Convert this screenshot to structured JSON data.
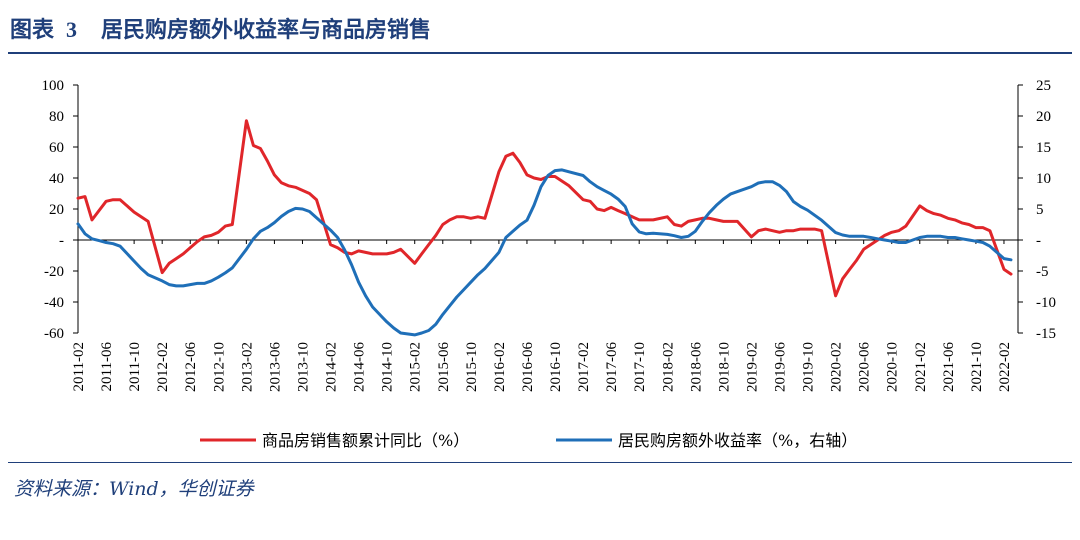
{
  "header": {
    "figure_label": "图表",
    "figure_number": "3",
    "title": "居民购房额外收益率与商品房销售"
  },
  "source": "资料来源：Wind，华创证券",
  "chart_data": {
    "type": "line",
    "xlabel": "",
    "ylabel": "",
    "y_left_lim": [
      -60,
      100
    ],
    "y_right_lim": [
      -15,
      25
    ],
    "y_left_ticks": [
      "100",
      "80",
      "60",
      "40",
      "20",
      "-",
      "-20",
      "-40",
      "-60"
    ],
    "y_right_ticks": [
      "25",
      "20",
      "15",
      "10",
      "5",
      "-",
      "-5",
      "-10",
      "-15"
    ],
    "x_tick_labels": [
      "2011-02",
      "2011-06",
      "2011-10",
      "2012-02",
      "2012-06",
      "2012-10",
      "2013-02",
      "2013-06",
      "2013-10",
      "2014-02",
      "2014-06",
      "2014-10",
      "2015-02",
      "2015-06",
      "2015-10",
      "2016-02",
      "2016-06",
      "2016-10",
      "2017-02",
      "2017-06",
      "2017-10",
      "2018-02",
      "2018-06",
      "2018-10",
      "2019-02",
      "2019-06",
      "2019-10",
      "2020-02",
      "2020-06",
      "2020-10",
      "2021-02",
      "2021-06",
      "2021-10",
      "2022-02"
    ],
    "grid": false,
    "legend_position": "bottom",
    "colors": {
      "sales": "#e0262a",
      "yield": "#1f6fb8"
    },
    "series": [
      {
        "name": "商品房销售额累计同比（%）",
        "axis": "left",
        "color": "#e0262a",
        "points": [
          [
            "2011-02",
            27
          ],
          [
            "2011-03",
            28
          ],
          [
            "2011-04",
            13
          ],
          [
            "2011-05",
            19
          ],
          [
            "2011-06",
            25
          ],
          [
            "2011-07",
            26
          ],
          [
            "2011-08",
            26
          ],
          [
            "2011-09",
            22
          ],
          [
            "2011-10",
            18
          ],
          [
            "2011-11",
            15
          ],
          [
            "2011-12",
            12
          ],
          [
            "2012-02",
            -21
          ],
          [
            "2012-03",
            -15
          ],
          [
            "2012-04",
            -12
          ],
          [
            "2012-05",
            -9
          ],
          [
            "2012-06",
            -5
          ],
          [
            "2012-07",
            -1
          ],
          [
            "2012-08",
            2
          ],
          [
            "2012-09",
            3
          ],
          [
            "2012-10",
            5
          ],
          [
            "2012-11",
            9
          ],
          [
            "2012-12",
            10
          ],
          [
            "2013-02",
            77
          ],
          [
            "2013-03",
            61
          ],
          [
            "2013-04",
            59
          ],
          [
            "2013-05",
            51
          ],
          [
            "2013-06",
            42
          ],
          [
            "2013-07",
            37
          ],
          [
            "2013-08",
            35
          ],
          [
            "2013-09",
            34
          ],
          [
            "2013-10",
            32
          ],
          [
            "2013-11",
            30
          ],
          [
            "2013-12",
            26
          ],
          [
            "2014-02",
            -3
          ],
          [
            "2014-03",
            -5
          ],
          [
            "2014-04",
            -8
          ],
          [
            "2014-05",
            -9
          ],
          [
            "2014-06",
            -7
          ],
          [
            "2014-07",
            -8
          ],
          [
            "2014-08",
            -9
          ],
          [
            "2014-09",
            -9
          ],
          [
            "2014-10",
            -9
          ],
          [
            "2014-11",
            -8
          ],
          [
            "2014-12",
            -6
          ],
          [
            "2015-02",
            -15
          ],
          [
            "2015-03",
            -9
          ],
          [
            "2015-04",
            -3
          ],
          [
            "2015-05",
            3
          ],
          [
            "2015-06",
            10
          ],
          [
            "2015-07",
            13
          ],
          [
            "2015-08",
            15
          ],
          [
            "2015-09",
            15
          ],
          [
            "2015-10",
            14
          ],
          [
            "2015-11",
            15
          ],
          [
            "2015-12",
            14
          ],
          [
            "2016-02",
            44
          ],
          [
            "2016-03",
            54
          ],
          [
            "2016-04",
            56
          ],
          [
            "2016-05",
            50
          ],
          [
            "2016-06",
            42
          ],
          [
            "2016-07",
            40
          ],
          [
            "2016-08",
            39
          ],
          [
            "2016-09",
            41
          ],
          [
            "2016-10",
            41
          ],
          [
            "2016-11",
            38
          ],
          [
            "2016-12",
            35
          ],
          [
            "2017-02",
            26
          ],
          [
            "2017-03",
            25
          ],
          [
            "2017-04",
            20
          ],
          [
            "2017-05",
            19
          ],
          [
            "2017-06",
            21
          ],
          [
            "2017-07",
            19
          ],
          [
            "2017-08",
            17
          ],
          [
            "2017-09",
            15
          ],
          [
            "2017-10",
            13
          ],
          [
            "2017-11",
            13
          ],
          [
            "2017-12",
            13
          ],
          [
            "2018-02",
            15
          ],
          [
            "2018-03",
            10
          ],
          [
            "2018-04",
            9
          ],
          [
            "2018-05",
            12
          ],
          [
            "2018-06",
            13
          ],
          [
            "2018-07",
            14
          ],
          [
            "2018-08",
            14
          ],
          [
            "2018-09",
            13
          ],
          [
            "2018-10",
            12
          ],
          [
            "2018-11",
            12
          ],
          [
            "2018-12",
            12
          ],
          [
            "2019-02",
            2
          ],
          [
            "2019-03",
            6
          ],
          [
            "2019-04",
            7
          ],
          [
            "2019-05",
            6
          ],
          [
            "2019-06",
            5
          ],
          [
            "2019-07",
            6
          ],
          [
            "2019-08",
            6
          ],
          [
            "2019-09",
            7
          ],
          [
            "2019-10",
            7
          ],
          [
            "2019-11",
            7
          ],
          [
            "2019-12",
            6
          ],
          [
            "2020-02",
            -36
          ],
          [
            "2020-03",
            -25
          ],
          [
            "2020-04",
            -19
          ],
          [
            "2020-05",
            -13
          ],
          [
            "2020-06",
            -6
          ],
          [
            "2020-07",
            -3
          ],
          [
            "2020-08",
            0
          ],
          [
            "2020-09",
            3
          ],
          [
            "2020-10",
            5
          ],
          [
            "2020-11",
            6
          ],
          [
            "2020-12",
            9
          ],
          [
            "2021-02",
            22
          ],
          [
            "2021-03",
            19
          ],
          [
            "2021-04",
            17
          ],
          [
            "2021-05",
            16
          ],
          [
            "2021-06",
            14
          ],
          [
            "2021-07",
            13
          ],
          [
            "2021-08",
            11
          ],
          [
            "2021-09",
            10
          ],
          [
            "2021-10",
            8
          ],
          [
            "2021-11",
            8
          ],
          [
            "2021-12",
            6
          ],
          [
            "2022-02",
            -19
          ],
          [
            "2022-03",
            -22
          ]
        ]
      },
      {
        "name": "居民购房额外收益率（%，右轴）",
        "axis": "right",
        "color": "#1f6fb8",
        "points": [
          [
            "2011-02",
            2.6
          ],
          [
            "2011-03",
            1.0
          ],
          [
            "2011-04",
            0.2
          ],
          [
            "2011-05",
            -0.1
          ],
          [
            "2011-06",
            -0.4
          ],
          [
            "2011-07",
            -0.6
          ],
          [
            "2011-08",
            -1.0
          ],
          [
            "2011-09",
            -2.2
          ],
          [
            "2011-10",
            -3.4
          ],
          [
            "2011-11",
            -4.6
          ],
          [
            "2011-12",
            -5.6
          ],
          [
            "2012-02",
            -6.6
          ],
          [
            "2012-03",
            -7.2
          ],
          [
            "2012-04",
            -7.4
          ],
          [
            "2012-05",
            -7.4
          ],
          [
            "2012-06",
            -7.2
          ],
          [
            "2012-07",
            -7.0
          ],
          [
            "2012-08",
            -7.0
          ],
          [
            "2012-09",
            -6.6
          ],
          [
            "2012-10",
            -6.0
          ],
          [
            "2012-11",
            -5.3
          ],
          [
            "2012-12",
            -4.5
          ],
          [
            "2013-02",
            -1.5
          ],
          [
            "2013-03",
            0.2
          ],
          [
            "2013-04",
            1.4
          ],
          [
            "2013-05",
            2.0
          ],
          [
            "2013-06",
            2.8
          ],
          [
            "2013-07",
            3.8
          ],
          [
            "2013-08",
            4.6
          ],
          [
            "2013-09",
            5.1
          ],
          [
            "2013-10",
            5.0
          ],
          [
            "2013-11",
            4.6
          ],
          [
            "2013-12",
            3.6
          ],
          [
            "2014-02",
            1.6
          ],
          [
            "2014-03",
            0.4
          ],
          [
            "2014-04",
            -1.6
          ],
          [
            "2014-05",
            -4.0
          ],
          [
            "2014-06",
            -6.8
          ],
          [
            "2014-07",
            -9.0
          ],
          [
            "2014-08",
            -10.8
          ],
          [
            "2014-09",
            -12.0
          ],
          [
            "2014-10",
            -13.2
          ],
          [
            "2014-11",
            -14.2
          ],
          [
            "2014-12",
            -15.0
          ],
          [
            "2015-02",
            -15.3
          ],
          [
            "2015-03",
            -15.0
          ],
          [
            "2015-04",
            -14.6
          ],
          [
            "2015-05",
            -13.6
          ],
          [
            "2015-06",
            -12.0
          ],
          [
            "2015-07",
            -10.6
          ],
          [
            "2015-08",
            -9.2
          ],
          [
            "2015-09",
            -8.0
          ],
          [
            "2015-10",
            -6.8
          ],
          [
            "2015-11",
            -5.6
          ],
          [
            "2015-12",
            -4.6
          ],
          [
            "2016-02",
            -2.0
          ],
          [
            "2016-03",
            0.4
          ],
          [
            "2016-04",
            1.4
          ],
          [
            "2016-05",
            2.4
          ],
          [
            "2016-06",
            3.2
          ],
          [
            "2016-07",
            5.6
          ],
          [
            "2016-08",
            8.6
          ],
          [
            "2016-09",
            10.4
          ],
          [
            "2016-10",
            11.2
          ],
          [
            "2016-11",
            11.3
          ],
          [
            "2016-12",
            11.0
          ],
          [
            "2017-02",
            10.4
          ],
          [
            "2017-03",
            9.4
          ],
          [
            "2017-04",
            8.6
          ],
          [
            "2017-05",
            8.0
          ],
          [
            "2017-06",
            7.4
          ],
          [
            "2017-07",
            6.6
          ],
          [
            "2017-08",
            5.4
          ],
          [
            "2017-09",
            2.6
          ],
          [
            "2017-10",
            1.3
          ],
          [
            "2017-11",
            1.0
          ],
          [
            "2017-12",
            1.1
          ],
          [
            "2018-02",
            0.9
          ],
          [
            "2018-03",
            0.7
          ],
          [
            "2018-04",
            0.4
          ],
          [
            "2018-05",
            0.6
          ],
          [
            "2018-06",
            1.4
          ],
          [
            "2018-07",
            3.0
          ],
          [
            "2018-08",
            4.4
          ],
          [
            "2018-09",
            5.6
          ],
          [
            "2018-10",
            6.6
          ],
          [
            "2018-11",
            7.4
          ],
          [
            "2018-12",
            7.8
          ],
          [
            "2019-02",
            8.6
          ],
          [
            "2019-03",
            9.2
          ],
          [
            "2019-04",
            9.4
          ],
          [
            "2019-05",
            9.4
          ],
          [
            "2019-06",
            8.8
          ],
          [
            "2019-07",
            7.8
          ],
          [
            "2019-08",
            6.2
          ],
          [
            "2019-09",
            5.4
          ],
          [
            "2019-10",
            4.8
          ],
          [
            "2019-11",
            4.0
          ],
          [
            "2019-12",
            3.2
          ],
          [
            "2020-02",
            1.2
          ],
          [
            "2020-03",
            0.8
          ],
          [
            "2020-04",
            0.6
          ],
          [
            "2020-05",
            0.6
          ],
          [
            "2020-06",
            0.6
          ],
          [
            "2020-07",
            0.4
          ],
          [
            "2020-08",
            0.2
          ],
          [
            "2020-09",
            0.0
          ],
          [
            "2020-10",
            -0.2
          ],
          [
            "2020-11",
            -0.4
          ],
          [
            "2020-12",
            -0.4
          ],
          [
            "2021-02",
            0.4
          ],
          [
            "2021-03",
            0.6
          ],
          [
            "2021-04",
            0.6
          ],
          [
            "2021-05",
            0.6
          ],
          [
            "2021-06",
            0.4
          ],
          [
            "2021-07",
            0.4
          ],
          [
            "2021-08",
            0.2
          ],
          [
            "2021-09",
            0.0
          ],
          [
            "2021-10",
            -0.2
          ],
          [
            "2021-11",
            -0.4
          ],
          [
            "2021-12",
            -1.0
          ],
          [
            "2022-02",
            -3.0
          ],
          [
            "2022-03",
            -3.2
          ]
        ]
      }
    ]
  }
}
